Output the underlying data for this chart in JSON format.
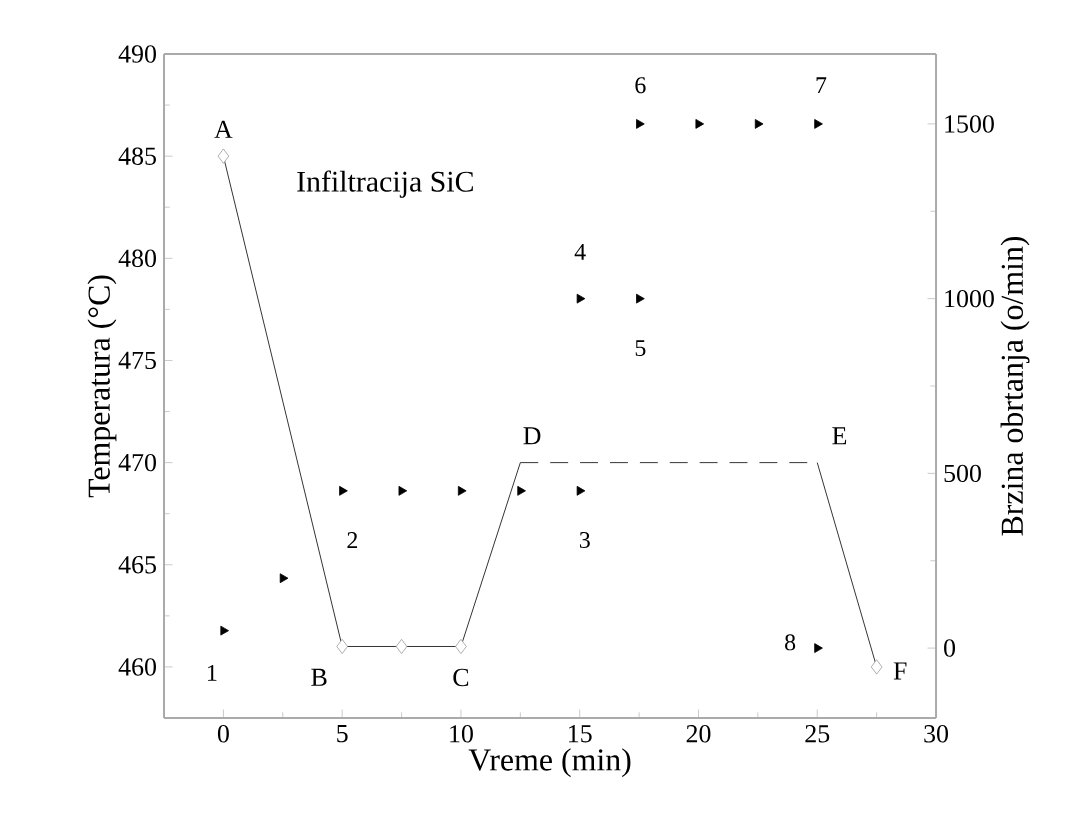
{
  "chart_data": {
    "type": "line",
    "xlabel": "Vreme (min)",
    "ylabel": "Temperatura (°C)",
    "y2label": "Brzina obrtanja (o/min)",
    "xlim": [
      -2.5,
      30
    ],
    "xticks": [
      0,
      5,
      10,
      15,
      20,
      25,
      30
    ],
    "ylim": [
      457.5,
      490
    ],
    "yticks": [
      460,
      465,
      470,
      475,
      480,
      485,
      490
    ],
    "y2lim": [
      -200,
      1700
    ],
    "y2ticks": [
      0,
      500,
      1000,
      1500
    ],
    "series": [
      {
        "color": "#000000",
        "line_style": "solid",
        "marker": "none",
        "x": [
          0,
          5,
          7.5,
          10,
          12.5
        ],
        "values": [
          485,
          461,
          461,
          461,
          470
        ]
      },
      {
        "color": "#000000",
        "line_style": "dashed",
        "marker": "none",
        "x": [
          12.5,
          25
        ],
        "values": [
          470,
          470
        ]
      },
      {
        "color": "#000000",
        "line_style": "solid",
        "marker": "none",
        "x": [
          25,
          27.5
        ],
        "values": [
          470,
          460
        ]
      },
      {
        "type": "scatter",
        "color": "#9a9a9a",
        "marker": "diamond",
        "x": [
          0,
          5,
          7.5,
          10,
          27.5
        ],
        "values": [
          485,
          461,
          461,
          461,
          460
        ]
      },
      {
        "type": "scatter",
        "axis": "y2",
        "color": "#000000",
        "marker": "triangle",
        "x": [
          0,
          2.5,
          5,
          7.5,
          10,
          12.5,
          15,
          15,
          17.5,
          17.5,
          20,
          22.5,
          25,
          25
        ],
        "values": [
          50,
          200,
          450,
          450,
          450,
          450,
          450,
          1000,
          1000,
          1500,
          1500,
          1500,
          1500,
          0
        ]
      }
    ],
    "annotations": [
      "Infiltracija SiC",
      "1",
      "2",
      "3",
      "4",
      "5",
      "6",
      "7",
      "8",
      {
        "text": "A",
        "x": 0,
        "y": 485
      },
      {
        "text": "B",
        "x": 5,
        "y": 461
      },
      {
        "text": "C",
        "x": 10,
        "y": 461
      },
      {
        "text": "D",
        "x": 12.5,
        "y": 470
      },
      {
        "text": "E",
        "x": 25,
        "y": 470
      },
      {
        "text": "F",
        "x": 27.5,
        "y": 460
      }
    ]
  }
}
